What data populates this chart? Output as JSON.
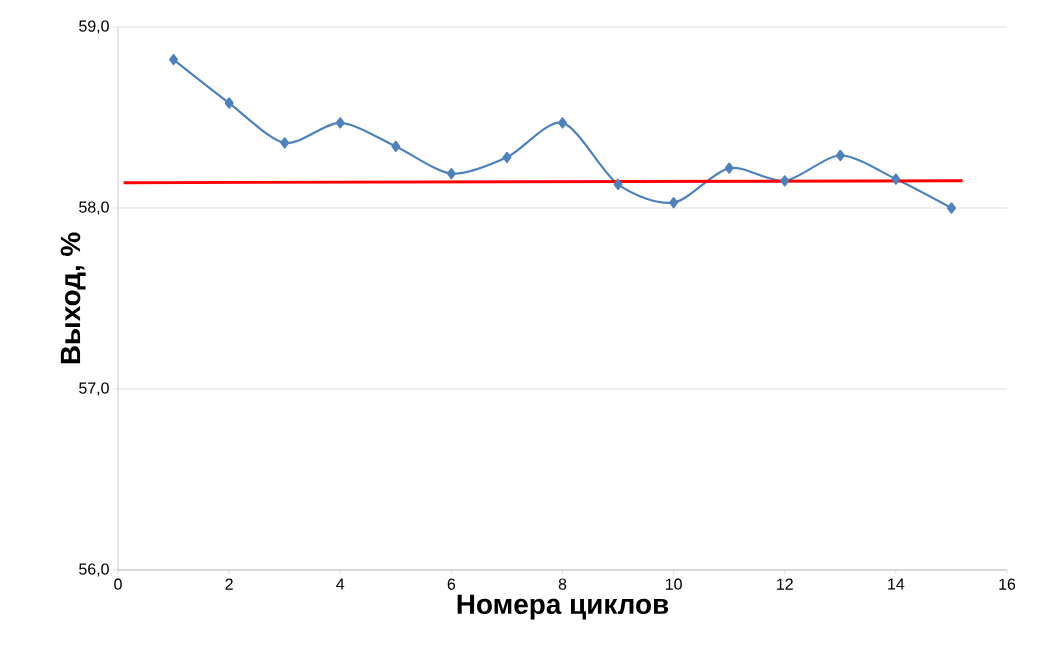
{
  "chart_data": {
    "type": "line",
    "xlabel": "Номера циклов",
    "ylabel": "Выход, %",
    "xlim": [
      0,
      16
    ],
    "xticks": [
      0,
      2,
      4,
      6,
      8,
      10,
      12,
      14,
      16
    ],
    "ylim": [
      56,
      59
    ],
    "yticks": [
      {
        "value": 56,
        "label": "56,0"
      },
      {
        "value": 57,
        "label": "57,0"
      },
      {
        "value": 58,
        "label": "58,0"
      },
      {
        "value": 59,
        "label": "59,0"
      }
    ],
    "grid": "y",
    "marker": "diamond",
    "series": [
      {
        "color": "#4f81bd",
        "x": [
          1,
          2,
          3,
          4,
          5,
          6,
          7,
          8,
          9,
          10,
          11,
          12,
          13,
          14,
          15
        ],
        "values": [
          58.82,
          58.58,
          58.36,
          58.47,
          58.34,
          58.19,
          58.28,
          58.47,
          58.13,
          58.03,
          58.22,
          58.15,
          58.29,
          58.16,
          58.0
        ]
      },
      {
        "color": "#ff0000",
        "marker": "none",
        "x": [
          0.1,
          15.2
        ],
        "values": [
          58.14,
          58.15
        ]
      }
    ]
  }
}
